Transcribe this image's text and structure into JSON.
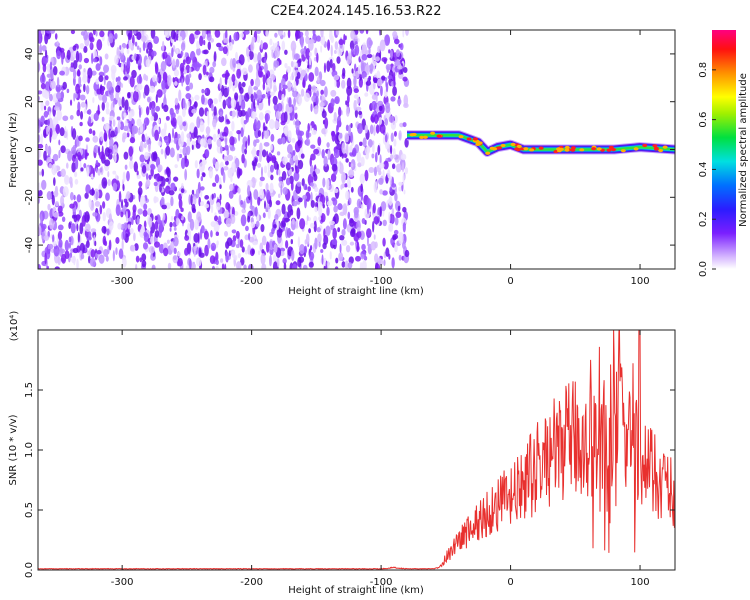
{
  "title": "C2E4.2024.145.16.53.R22",
  "chart_data": [
    {
      "type": "heatmap",
      "xlabel": "Height of straight line (km)",
      "ylabel": "Frequency (Hz)",
      "xlim": [
        -365,
        127
      ],
      "ylim": [
        -50,
        50
      ],
      "xticks": [
        -300,
        -200,
        -100,
        0,
        100
      ],
      "yticks": [
        -40,
        -20,
        0,
        20,
        40
      ],
      "data_region_x": [
        -365,
        -80
      ],
      "signal_track": {
        "x": [
          -80,
          -60,
          -40,
          -25,
          -18,
          -10,
          0,
          10,
          20,
          40,
          60,
          80,
          100,
          127
        ],
        "y": [
          6,
          6,
          6,
          3,
          -1,
          1,
          2,
          0,
          0,
          0,
          0,
          0,
          1,
          0
        ]
      },
      "colorbar": {
        "label": "Normalized spectral amplitude",
        "ticks": [
          0.0,
          0.2,
          0.4,
          0.6,
          0.8
        ],
        "tick_labels": [
          "0.0",
          "0.2",
          "0.4",
          "0.6",
          "0.8"
        ],
        "range": [
          0,
          0.96
        ]
      }
    },
    {
      "type": "line",
      "xlabel": "Height of straight line (km)",
      "ylabel": "SNR (10 * v/v)",
      "scale_label": "(x10⁴)",
      "xlim": [
        -365,
        127
      ],
      "ylim": [
        0,
        2.0
      ],
      "xticks": [
        -300,
        -200,
        -100,
        0,
        100
      ],
      "yticks": [
        0.0,
        0.5,
        1.0,
        1.5
      ],
      "ytick_labels": [
        "0.0",
        "0.5",
        "1.0",
        "1.5"
      ],
      "color": "#e8302e",
      "series": [
        {
          "x": [
            -365,
            -300,
            -200,
            -100,
            -90,
            -80,
            -60,
            -55,
            -50,
            -45,
            -40,
            -30,
            -20,
            -10,
            0,
            10,
            20,
            30,
            40,
            50,
            60,
            70,
            80,
            90,
            95,
            100,
            105,
            110,
            120,
            127
          ],
          "y": [
            0.01,
            0.01,
            0.01,
            0.01,
            0.02,
            0.01,
            0.01,
            0.02,
            0.1,
            0.18,
            0.25,
            0.35,
            0.45,
            0.55,
            0.6,
            0.7,
            0.85,
            0.95,
            1.05,
            1.1,
            1.05,
            1.15,
            1.25,
            1.2,
            1.0,
            0.95,
            0.85,
            0.8,
            0.72,
            0.62
          ]
        }
      ]
    }
  ]
}
